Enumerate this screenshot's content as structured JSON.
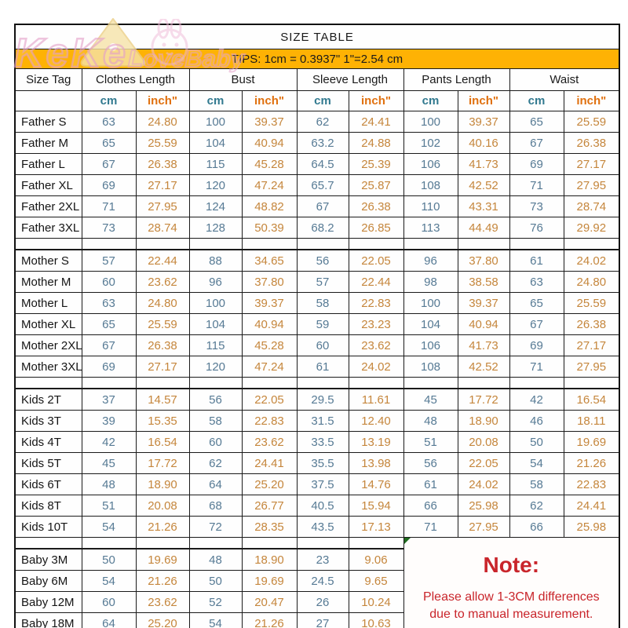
{
  "title": "SIZE TABLE",
  "tips": "TIPS: 1cm = 0.3937\"   1\"=2.54 cm",
  "watermark": {
    "line1": "KeKe",
    "line2": "LoveBaby"
  },
  "table": {
    "column_groups": [
      "Size Tag",
      "Clothes Length",
      "Bust",
      "Sleeve Length",
      "Pants Length",
      "Waist"
    ],
    "units": {
      "cm": "cm",
      "inch": "inch\""
    },
    "sections": [
      {
        "name": "father",
        "rows": [
          {
            "tag": "Father S",
            "values": [
              "63",
              "24.80",
              "100",
              "39.37",
              "62",
              "24.41",
              "100",
              "39.37",
              "65",
              "25.59"
            ]
          },
          {
            "tag": "Father M",
            "values": [
              "65",
              "25.59",
              "104",
              "40.94",
              "63.2",
              "24.88",
              "102",
              "40.16",
              "67",
              "26.38"
            ]
          },
          {
            "tag": "Father L",
            "values": [
              "67",
              "26.38",
              "115",
              "45.28",
              "64.5",
              "25.39",
              "106",
              "41.73",
              "69",
              "27.17"
            ]
          },
          {
            "tag": "Father XL",
            "values": [
              "69",
              "27.17",
              "120",
              "47.24",
              "65.7",
              "25.87",
              "108",
              "42.52",
              "71",
              "27.95"
            ]
          },
          {
            "tag": "Father 2XL",
            "values": [
              "71",
              "27.95",
              "124",
              "48.82",
              "67",
              "26.38",
              "110",
              "43.31",
              "73",
              "28.74"
            ]
          },
          {
            "tag": "Father 3XL",
            "values": [
              "73",
              "28.74",
              "128",
              "50.39",
              "68.2",
              "26.85",
              "113",
              "44.49",
              "76",
              "29.92"
            ]
          }
        ]
      },
      {
        "name": "mother",
        "rows": [
          {
            "tag": "Mother S",
            "values": [
              "57",
              "22.44",
              "88",
              "34.65",
              "56",
              "22.05",
              "96",
              "37.80",
              "61",
              "24.02"
            ]
          },
          {
            "tag": "Mother M",
            "values": [
              "60",
              "23.62",
              "96",
              "37.80",
              "57",
              "22.44",
              "98",
              "38.58",
              "63",
              "24.80"
            ]
          },
          {
            "tag": "Mother L",
            "values": [
              "63",
              "24.80",
              "100",
              "39.37",
              "58",
              "22.83",
              "100",
              "39.37",
              "65",
              "25.59"
            ]
          },
          {
            "tag": "Mother XL",
            "values": [
              "65",
              "25.59",
              "104",
              "40.94",
              "59",
              "23.23",
              "104",
              "40.94",
              "67",
              "26.38"
            ]
          },
          {
            "tag": "Mother 2XL",
            "values": [
              "67",
              "26.38",
              "115",
              "45.28",
              "60",
              "23.62",
              "106",
              "41.73",
              "69",
              "27.17"
            ]
          },
          {
            "tag": "Mother 3XL",
            "values": [
              "69",
              "27.17",
              "120",
              "47.24",
              "61",
              "24.02",
              "108",
              "42.52",
              "71",
              "27.95"
            ]
          }
        ]
      },
      {
        "name": "kids",
        "rows": [
          {
            "tag": "Kids 2T",
            "values": [
              "37",
              "14.57",
              "56",
              "22.05",
              "29.5",
              "11.61",
              "45",
              "17.72",
              "42",
              "16.54"
            ]
          },
          {
            "tag": "Kids 3T",
            "values": [
              "39",
              "15.35",
              "58",
              "22.83",
              "31.5",
              "12.40",
              "48",
              "18.90",
              "46",
              "18.11"
            ]
          },
          {
            "tag": "Kids 4T",
            "values": [
              "42",
              "16.54",
              "60",
              "23.62",
              "33.5",
              "13.19",
              "51",
              "20.08",
              "50",
              "19.69"
            ]
          },
          {
            "tag": "Kids 5T",
            "values": [
              "45",
              "17.72",
              "62",
              "24.41",
              "35.5",
              "13.98",
              "56",
              "22.05",
              "54",
              "21.26"
            ]
          },
          {
            "tag": "Kids 6T",
            "values": [
              "48",
              "18.90",
              "64",
              "25.20",
              "37.5",
              "14.76",
              "61",
              "24.02",
              "58",
              "22.83"
            ]
          },
          {
            "tag": "Kids 8T",
            "values": [
              "51",
              "20.08",
              "68",
              "26.77",
              "40.5",
              "15.94",
              "66",
              "25.98",
              "62",
              "24.41"
            ]
          },
          {
            "tag": "Kids 10T",
            "values": [
              "54",
              "21.26",
              "72",
              "28.35",
              "43.5",
              "17.13",
              "71",
              "27.95",
              "66",
              "25.98"
            ]
          }
        ]
      },
      {
        "name": "baby",
        "rows": [
          {
            "tag": "Baby 3M",
            "values": [
              "50",
              "19.69",
              "48",
              "18.90",
              "23",
              "9.06"
            ]
          },
          {
            "tag": "Baby 6M",
            "values": [
              "54",
              "21.26",
              "50",
              "19.69",
              "24.5",
              "9.65"
            ]
          },
          {
            "tag": "Baby 12M",
            "values": [
              "60",
              "23.62",
              "52",
              "20.47",
              "26",
              "10.24"
            ]
          },
          {
            "tag": "Baby 18M",
            "values": [
              "64",
              "25.20",
              "54",
              "21.26",
              "27",
              "10.63"
            ]
          }
        ]
      }
    ]
  },
  "note": {
    "heading": "Note:",
    "body": "Please allow 1-3CM differences due to manual measurement."
  },
  "colors": {
    "tips_bg": "#feb204",
    "tips_text": "#402800",
    "cm_text": "#567a94",
    "inch_text": "#c5863c",
    "cm_header": "#31798f",
    "inch_header": "#e0700e",
    "note_red": "#c9252b",
    "watermark_pink": "#e4a0c8",
    "cheese_yellow": "#f6e3a8"
  }
}
